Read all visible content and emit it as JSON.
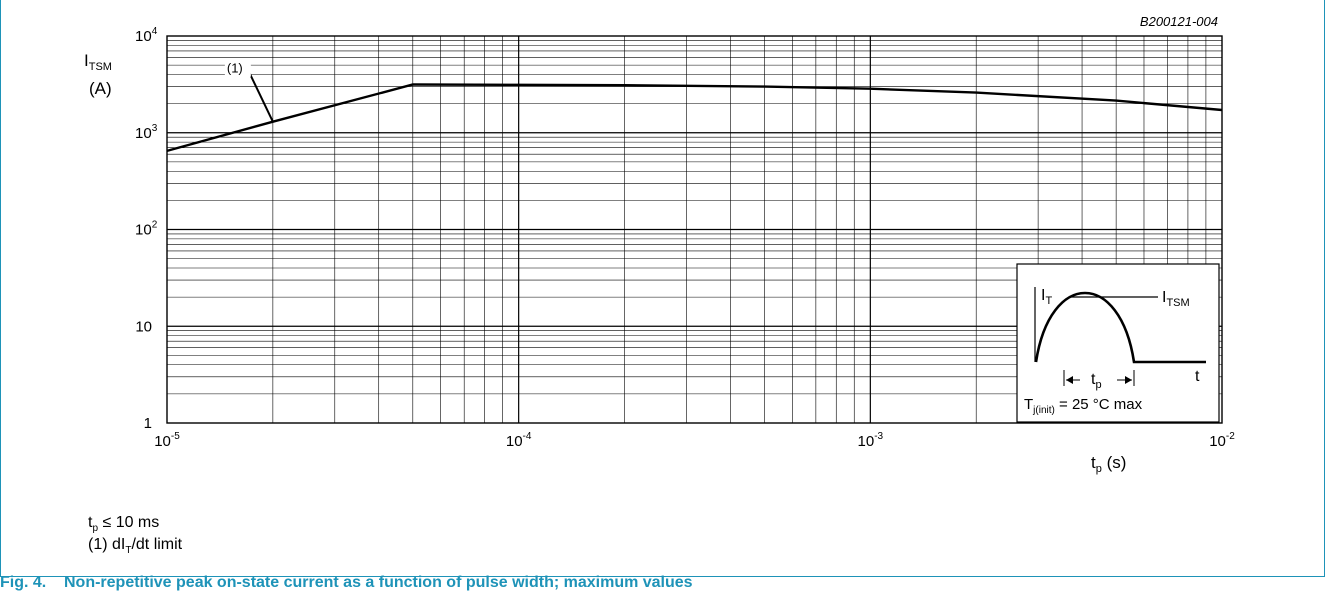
{
  "chart_data": {
    "type": "line",
    "code": "B200121-004",
    "x_scale": "log",
    "y_scale": "log",
    "xlim": [
      1e-05,
      0.01
    ],
    "ylim": [
      1,
      10000
    ],
    "ylabel": {
      "main": "I",
      "sub": "TSM",
      "unit": "(A)"
    },
    "xlabel": {
      "main": "t",
      "sub": "p",
      "unit": " (s)"
    },
    "x_ticks": [
      {
        "mant": "10",
        "exp": "-5",
        "value": 1e-05
      },
      {
        "mant": "10",
        "exp": "-4",
        "value": 0.0001
      },
      {
        "mant": "10",
        "exp": "-3",
        "value": 0.001
      },
      {
        "mant": "10",
        "exp": "-2",
        "value": 0.01
      }
    ],
    "y_ticks": [
      {
        "mant": "1",
        "exp": "",
        "value": 1
      },
      {
        "mant": "10",
        "exp": "",
        "value": 10
      },
      {
        "mant": "10",
        "exp": "2",
        "value": 100
      },
      {
        "mant": "10",
        "exp": "3",
        "value": 1000
      },
      {
        "mant": "10",
        "exp": "4",
        "value": 10000
      }
    ],
    "grid": true,
    "series": [
      {
        "name": "(1)",
        "color": "#000000",
        "x": [
          1e-05,
          2e-05,
          5e-05,
          0.0001,
          0.0002,
          0.0005,
          0.001,
          0.002,
          0.005,
          0.01
        ],
        "y": [
          650,
          1300,
          3150,
          3130,
          3100,
          3000,
          2850,
          2600,
          2150,
          1720
        ]
      }
    ]
  },
  "inset": {
    "it_main": "I",
    "it_sub": "T",
    "itsm_main": "I",
    "itsm_sub": "TSM",
    "t_label": "t",
    "tp_main": "t",
    "tp_sub": "p",
    "tj_main": "T",
    "tj_sub": "j(init)",
    "tj_rest": " = 25 °C max"
  },
  "notes": {
    "n1_main": "t",
    "n1_sub": "p",
    "n1_rest": " ≤ 10 ms",
    "n2_a": "(1) dI",
    "n2_sub": "T",
    "n2_rest": "/dt limit"
  },
  "caption": {
    "number": "Fig. 4.",
    "text": "Non-repetitive peak on-state current as a function of pulse width; maximum values"
  },
  "colors": {
    "accent": "#1e93b8",
    "curve": "#000000",
    "grid": "#000000"
  }
}
